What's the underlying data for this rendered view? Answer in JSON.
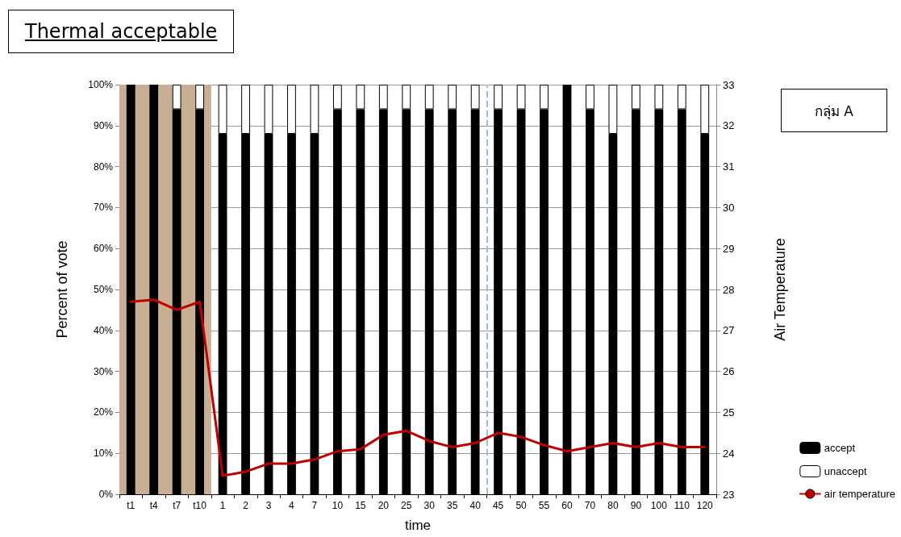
{
  "chart_data": {
    "type": "bar",
    "title": "Thermal acceptable",
    "xlabel": "time",
    "ylabel": "Percent of vote",
    "y2label": "Air Temperature",
    "annotations": [
      "กลุ่ม A"
    ],
    "categories": [
      "t1",
      "t4",
      "t7",
      "t10",
      "1",
      "2",
      "3",
      "4",
      "7",
      "10",
      "15",
      "20",
      "25",
      "30",
      "35",
      "40",
      "45",
      "50",
      "55",
      "60",
      "70",
      "80",
      "90",
      "100",
      "110",
      "120"
    ],
    "stacked": true,
    "series": [
      {
        "name": "accept",
        "color": "#000000",
        "values": [
          100,
          100,
          94,
          94,
          88,
          88,
          88,
          88,
          88,
          94,
          94,
          94,
          94,
          94,
          94,
          94,
          94,
          94,
          94,
          100,
          94,
          88,
          94,
          94,
          94,
          88
        ]
      },
      {
        "name": "unaccept",
        "color": "#ffffff",
        "values": [
          0,
          0,
          6,
          6,
          12,
          12,
          12,
          12,
          12,
          6,
          6,
          6,
          6,
          6,
          6,
          6,
          6,
          6,
          6,
          0,
          6,
          12,
          6,
          6,
          6,
          12
        ]
      },
      {
        "name": "air temperature",
        "type": "line",
        "axis": "y2",
        "color": "#c00000",
        "values": [
          27.7,
          27.75,
          27.5,
          27.7,
          23.45,
          23.55,
          23.75,
          23.75,
          23.85,
          24.05,
          24.1,
          24.45,
          24.55,
          24.3,
          24.15,
          24.25,
          24.5,
          24.4,
          24.2,
          24.05,
          24.15,
          24.25,
          24.15,
          24.25,
          24.15,
          24.15
        ]
      }
    ],
    "ylim": [
      0,
      100
    ],
    "yticks": [
      {
        "value": 0,
        "label": "0%"
      },
      {
        "value": 10,
        "label": "10%"
      },
      {
        "value": 20,
        "label": "20%"
      },
      {
        "value": 30,
        "label": "30%"
      },
      {
        "value": 40,
        "label": "40%"
      },
      {
        "value": 50,
        "label": "50%"
      },
      {
        "value": 60,
        "label": "60%"
      },
      {
        "value": 70,
        "label": "70%"
      },
      {
        "value": 80,
        "label": "80%"
      },
      {
        "value": 90,
        "label": "90%"
      },
      {
        "value": 100,
        "label": "100%"
      }
    ],
    "y2lim": [
      23,
      33
    ],
    "y2ticks": [
      23,
      24,
      25,
      26,
      27,
      28,
      29,
      30,
      31,
      32,
      33
    ],
    "grid": "y",
    "legend": "bottom right",
    "marker": "none",
    "line_style": "solid",
    "bands": [
      {
        "axis": "x",
        "from": "t1",
        "to": "t10",
        "color": "#c8ae92"
      }
    ],
    "ref_lines": [
      {
        "axis": "x",
        "value": "45",
        "color": "#8fc3e0",
        "line_style": "dashed"
      }
    ]
  }
}
